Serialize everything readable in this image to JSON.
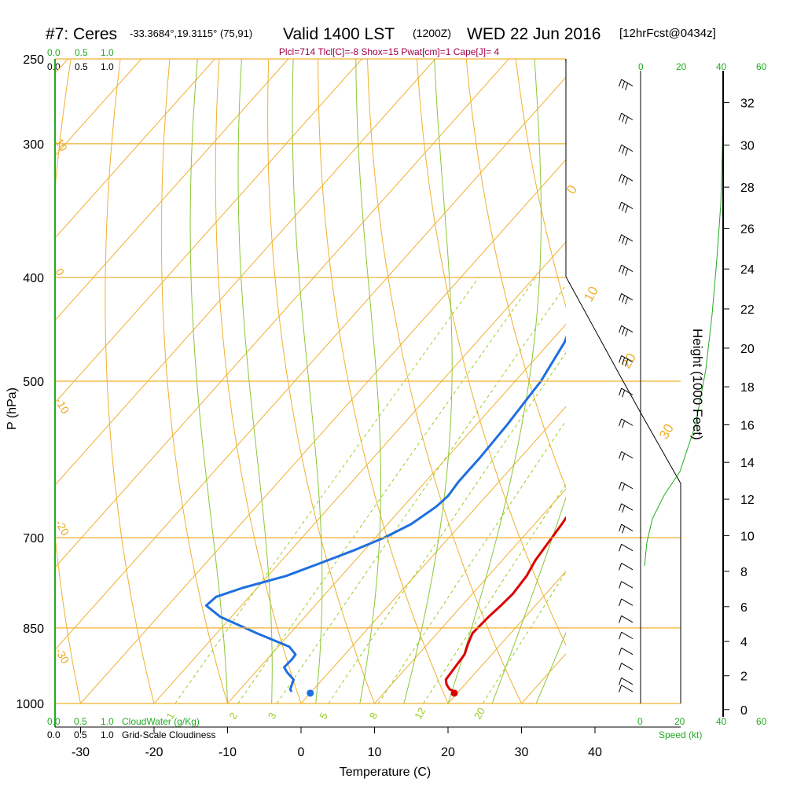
{
  "header": {
    "station": "#7: Ceres",
    "coords": "-33.3684°,19.3115° (75,91)",
    "valid": "Valid 1400 LST",
    "zulu": "(1200Z)",
    "date": "WED 22 Jun 2016",
    "forecast": "[12hrFcst@0434z]"
  },
  "params_line": "Plcl=714 Tlcl[C]=-8 Shox=15 Pwat[cm]=1 Cape[J]= 4",
  "cloud_scale": {
    "top_green": [
      "0.0",
      "0.5",
      "1.0"
    ],
    "top_black": [
      "0.0",
      "0.5",
      "1.0"
    ],
    "bottom_green": [
      "0.0",
      "0.5",
      "1.0"
    ],
    "bottom_green_label": "CloudWater (g/Kg)",
    "bottom_black": [
      "0.0",
      "0.5",
      "1.0"
    ],
    "bottom_black_label": "Grid-Scale Cloudiness"
  },
  "speed_scale": {
    "top_black": [
      "0",
      "20"
    ],
    "top_green": [
      "20",
      "40",
      "60"
    ],
    "bottom_black": [
      "0",
      "20"
    ],
    "bottom_green": [
      "40",
      "60"
    ],
    "label": "Speed (kt)"
  },
  "isotherm_labels": [
    "0",
    "10",
    "20",
    "30",
    "10",
    "0",
    "-10",
    "-20",
    "-30"
  ],
  "dry_adiabat_labels": [
    "0",
    "10",
    "20",
    "30"
  ],
  "mixing_ratio_labels": [
    "1",
    "2",
    "3",
    "5",
    "8",
    "12",
    "20"
  ],
  "chart_data": {
    "type": "line",
    "title": "",
    "xlabel": "Temperature (C)",
    "ylabel": "P (hPa)",
    "y2label": "Height (1000 Feet)",
    "xlim": [
      -33.5,
      36
    ],
    "ylim": [
      1000,
      250
    ],
    "yscale": "log",
    "x_ticks": [
      -30,
      -20,
      -10,
      0,
      10,
      20,
      30,
      40
    ],
    "y_ticks": [
      250,
      300,
      400,
      500,
      700,
      850,
      1000
    ],
    "y2_ticks": [
      0,
      2,
      4,
      6,
      8,
      10,
      12,
      14,
      16,
      18,
      20,
      22,
      24,
      26,
      28,
      30,
      32
    ],
    "skew_deg_per_log": 130,
    "series": [
      {
        "color": "#dd0000",
        "points": [
          [
            19.5,
            975
          ],
          [
            18.5,
            970
          ],
          [
            17.5,
            960
          ],
          [
            16.8,
            950
          ],
          [
            16.6,
            930
          ],
          [
            16.3,
            900
          ],
          [
            15.5,
            880
          ],
          [
            14.8,
            860
          ],
          [
            15.0,
            830
          ],
          [
            15.3,
            810
          ],
          [
            15.5,
            790
          ],
          [
            15.2,
            760
          ],
          [
            14.5,
            735
          ],
          [
            14.0,
            700
          ],
          [
            13.7,
            680
          ],
          [
            13.3,
            660
          ],
          [
            12.5,
            625
          ],
          [
            11.2,
            590
          ],
          [
            9.7,
            560
          ],
          [
            7.0,
            520
          ],
          [
            4.7,
            490
          ],
          [
            1.0,
            450
          ],
          [
            -3.1,
            410
          ],
          [
            -7.4,
            375
          ],
          [
            -12.0,
            345
          ],
          [
            -17.7,
            315
          ],
          [
            -21.5,
            290
          ],
          [
            -21.2,
            280
          ],
          [
            -21.0,
            260
          ]
        ]
      },
      {
        "color": "#1e6fdf",
        "points": [
          [
            -2.7,
            975
          ],
          [
            -3.2,
            970
          ],
          [
            -3.9,
            950
          ],
          [
            -5.7,
            935
          ],
          [
            -6.7,
            925
          ],
          [
            -6.6,
            910
          ],
          [
            -6.7,
            900
          ],
          [
            -8.5,
            885
          ],
          [
            -14.5,
            860
          ],
          [
            -21.5,
            830
          ],
          [
            -24.8,
            810
          ],
          [
            -24.5,
            795
          ],
          [
            -22.0,
            780
          ],
          [
            -17.5,
            760
          ],
          [
            -14.5,
            740
          ],
          [
            -11.5,
            720
          ],
          [
            -8.8,
            700
          ],
          [
            -6.8,
            680
          ],
          [
            -5.5,
            655
          ],
          [
            -5.2,
            640
          ],
          [
            -5.5,
            620
          ],
          [
            -5.5,
            590
          ],
          [
            -5.8,
            550
          ],
          [
            -6.5,
            500
          ],
          [
            -8.0,
            460
          ],
          [
            -10.5,
            425
          ],
          [
            -15.0,
            390
          ],
          [
            -19.0,
            365
          ],
          [
            -22.0,
            348
          ],
          [
            -22.5,
            340
          ],
          [
            -24.0,
            320
          ],
          [
            -25.0,
            300
          ],
          [
            -28.0,
            285
          ],
          [
            -30.0,
            275
          ],
          [
            -31.0,
            255
          ]
        ]
      }
    ],
    "surface_points": [
      {
        "color": "#dd0000",
        "t": 19.6,
        "p": 978
      },
      {
        "color": "#1e6fdf",
        "t": 0.0,
        "p": 978
      }
    ]
  }
}
